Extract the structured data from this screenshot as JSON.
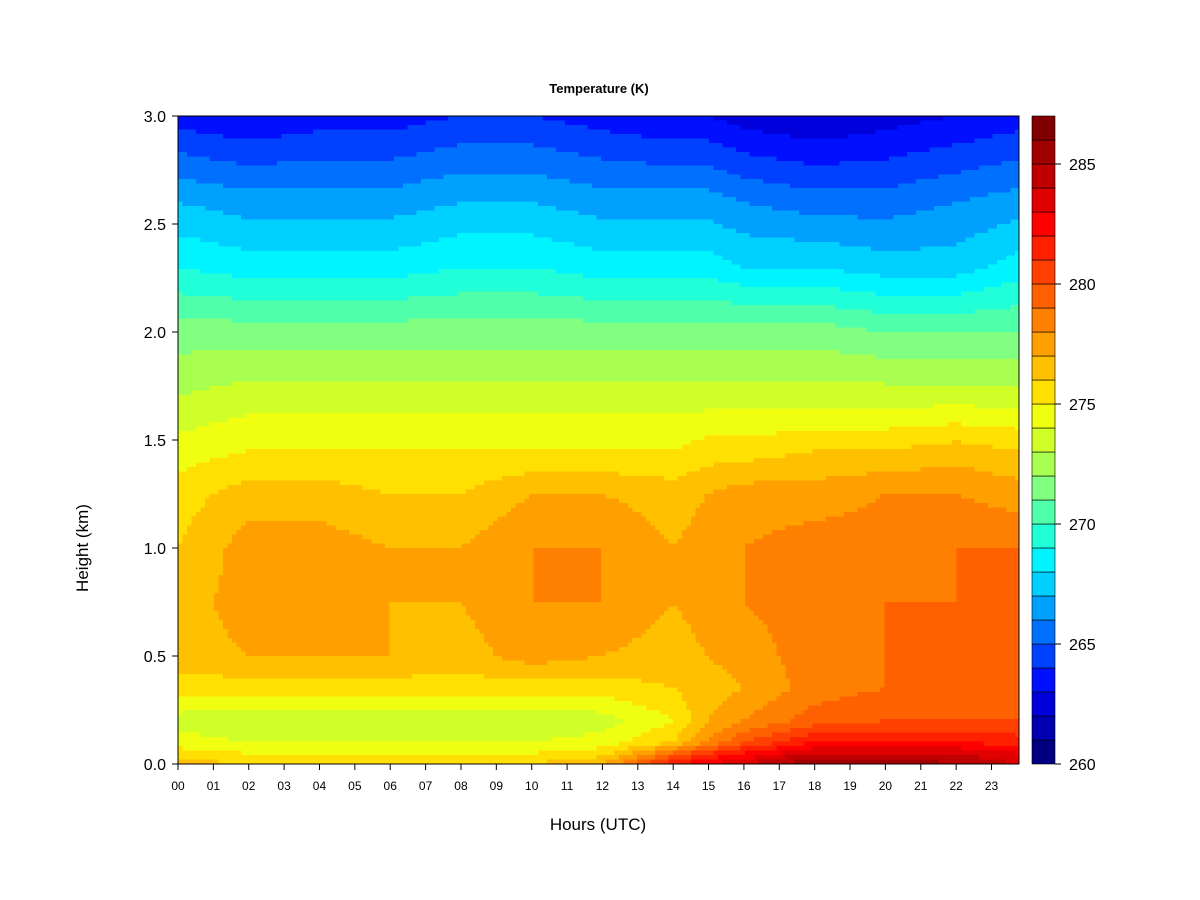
{
  "chart_data": {
    "type": "heatmap",
    "title": "Temperature (K)",
    "xlabel": "Hours (UTC)",
    "ylabel": "Height (km)",
    "x_ticks": [
      "00",
      "01",
      "02",
      "03",
      "04",
      "05",
      "06",
      "07",
      "08",
      "09",
      "10",
      "11",
      "12",
      "13",
      "14",
      "15",
      "16",
      "17",
      "18",
      "19",
      "20",
      "21",
      "22",
      "23"
    ],
    "xlim": [
      0,
      23.8
    ],
    "y_ticks": [
      "0.0",
      "0.5",
      "1.0",
      "1.5",
      "2.0",
      "2.5",
      "3.0"
    ],
    "ylim": [
      0,
      3.0
    ],
    "colorbar": {
      "range": [
        260,
        287
      ],
      "step": 1,
      "tick_labels": [
        "260",
        "265",
        "270",
        "275",
        "280",
        "285"
      ],
      "colors": [
        "#000080",
        "#0000b0",
        "#0000dd",
        "#0010ff",
        "#0040ff",
        "#0070ff",
        "#00a0ff",
        "#00d0ff",
        "#00f4ff",
        "#20ffd8",
        "#50ffaa",
        "#80ff80",
        "#a8ff50",
        "#d0ff28",
        "#f0ff10",
        "#ffe000",
        "#ffc000",
        "#ffa000",
        "#ff8000",
        "#ff6000",
        "#ff4000",
        "#ff2000",
        "#ff0000",
        "#e00000",
        "#c00000",
        "#a00000",
        "#800000"
      ]
    },
    "height_km": [
      0.0,
      0.05,
      0.1,
      0.2,
      0.35,
      0.5,
      0.75,
      1.0,
      1.25,
      1.45,
      1.7,
      2.0,
      2.3,
      2.6,
      3.0
    ],
    "hours": [
      0,
      2,
      4,
      6,
      8,
      10,
      12,
      14,
      15,
      16,
      18,
      20,
      22,
      23.8
    ],
    "temperature_K": [
      [
        276.5,
        276.0,
        276.0,
        276.0,
        276.0,
        276.0,
        277.0,
        282.0,
        283.0,
        284.0,
        286.0,
        286.0,
        285.0,
        284.0
      ],
      [
        275.5,
        275.0,
        275.0,
        275.0,
        275.0,
        275.0,
        275.5,
        279.0,
        281.0,
        282.0,
        284.0,
        284.0,
        284.0,
        283.0
      ],
      [
        274.5,
        274.0,
        274.0,
        274.0,
        274.0,
        274.0,
        274.5,
        276.0,
        278.0,
        280.0,
        282.0,
        282.0,
        282.0,
        281.5
      ],
      [
        273.5,
        273.0,
        273.0,
        273.0,
        273.0,
        273.0,
        273.5,
        275.0,
        277.0,
        278.0,
        279.5,
        280.0,
        280.0,
        280.0
      ],
      [
        275.5,
        275.5,
        275.5,
        275.5,
        275.5,
        275.5,
        275.5,
        276.0,
        276.5,
        277.0,
        278.5,
        279.0,
        279.0,
        279.0
      ],
      [
        276.5,
        277.0,
        277.0,
        277.0,
        276.5,
        277.5,
        277.0,
        276.5,
        277.0,
        277.5,
        278.5,
        279.0,
        279.5,
        279.0
      ],
      [
        276.5,
        277.5,
        277.5,
        277.0,
        277.0,
        278.0,
        278.0,
        277.0,
        277.5,
        278.0,
        278.5,
        279.0,
        279.0,
        279.0
      ],
      [
        276.0,
        277.5,
        277.5,
        277.0,
        277.0,
        278.0,
        278.0,
        277.0,
        277.5,
        278.0,
        278.5,
        278.5,
        279.0,
        279.0
      ],
      [
        275.5,
        276.5,
        276.5,
        276.0,
        276.0,
        277.0,
        277.0,
        276.5,
        277.0,
        277.5,
        277.5,
        278.0,
        278.0,
        277.5
      ],
      [
        274.5,
        275.0,
        275.0,
        275.0,
        275.0,
        275.0,
        275.0,
        275.0,
        275.5,
        275.5,
        276.0,
        276.0,
        276.5,
        276.0
      ],
      [
        273.0,
        273.5,
        273.5,
        273.5,
        273.5,
        273.5,
        273.5,
        273.5,
        273.5,
        273.5,
        273.5,
        273.5,
        273.5,
        273.5
      ],
      [
        271.5,
        271.5,
        271.5,
        271.5,
        271.5,
        271.5,
        271.5,
        271.5,
        271.5,
        271.5,
        271.5,
        271.0,
        271.0,
        271.0
      ],
      [
        269.0,
        268.5,
        268.5,
        268.5,
        269.0,
        269.0,
        268.5,
        268.5,
        268.5,
        268.0,
        268.0,
        267.5,
        267.5,
        268.5
      ],
      [
        267.0,
        266.5,
        266.5,
        266.5,
        267.0,
        267.0,
        266.5,
        266.5,
        266.5,
        266.0,
        265.5,
        265.5,
        266.0,
        266.5
      ],
      [
        263.5,
        263.0,
        263.5,
        263.5,
        264.0,
        264.0,
        263.5,
        263.0,
        263.0,
        262.5,
        262.0,
        262.5,
        263.0,
        263.5
      ]
    ]
  }
}
